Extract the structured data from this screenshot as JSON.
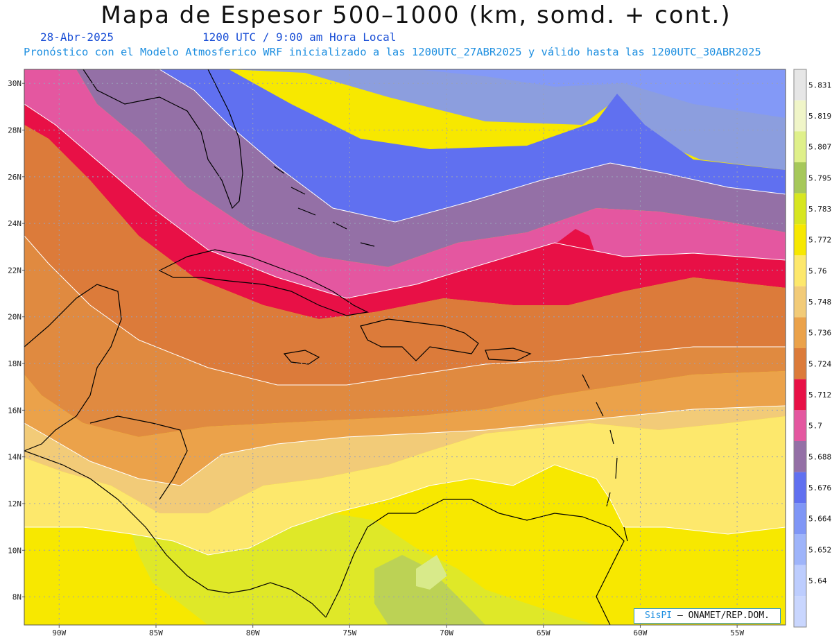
{
  "header": {
    "title": "Mapa de Espesor 500–1000 (km, somd. + cont.)",
    "date": "28-Abr-2025",
    "time": "1200 UTC / 9:00 am Hora Local",
    "description": "Pronóstico con el Modelo Atmosferico WRF inicializado a las 1200UTC_27ABR2025 y válido hasta las  1200UTC_30ABR2025"
  },
  "axes": {
    "lat_labels": [
      "30N",
      "28N",
      "26N",
      "24N",
      "22N",
      "20N",
      "18N",
      "16N",
      "14N",
      "12N",
      "10N",
      "8N"
    ],
    "lat_values": [
      30,
      28,
      26,
      24,
      22,
      20,
      18,
      16,
      14,
      12,
      10,
      8
    ],
    "lon_labels": [
      "90W",
      "85W",
      "80W",
      "75W",
      "70W",
      "65W",
      "60W",
      "55W"
    ],
    "lon_values": [
      -90,
      -85,
      -80,
      -75,
      -70,
      -65,
      -60,
      -55
    ],
    "lon_range": [
      -91.8,
      -52.5
    ],
    "lat_range": [
      6.8,
      30.6
    ],
    "grid": "dotted"
  },
  "colorbar": {
    "labels": [
      "5.831",
      "5.819",
      "5.807",
      "5.795",
      "5.783",
      "5.772",
      "5.76",
      "5.748",
      "5.736",
      "5.724",
      "5.712",
      "5.7",
      "5.688",
      "5.676",
      "5.664",
      "5.652",
      "5.64"
    ],
    "colors": [
      "#e6e6e6",
      "#f0f5c8",
      "#dff08a",
      "#a6c85a",
      "#d7e620",
      "#f7e800",
      "#fde86c",
      "#f2cb78",
      "#eba24a",
      "#dc7b3a",
      "#e81046",
      "#e457a0",
      "#9470a6",
      "#6070f0",
      "#7f96f6",
      "#9eb4fa",
      "#bdcdfe"
    ]
  },
  "credit": {
    "brand": "SisPI",
    "text": "– ONAMET/REP.DOM."
  },
  "colors": {
    "land_outline": "#000000",
    "contour": "#ffffff"
  }
}
